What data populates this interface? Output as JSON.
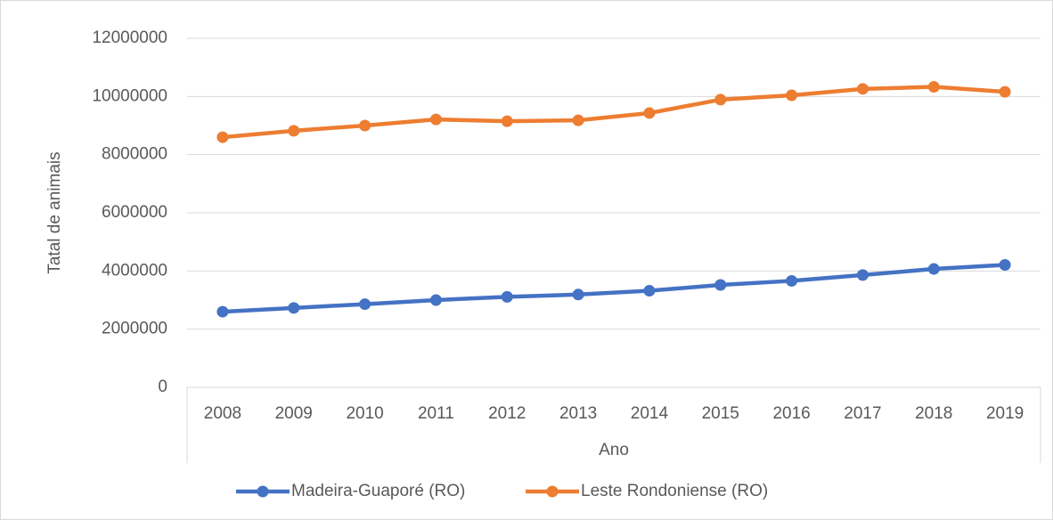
{
  "chart_data": {
    "type": "line",
    "y_label": "Tatal de animais",
    "x_label": "Ano",
    "categories": [
      "2008",
      "2009",
      "2010",
      "2011",
      "2012",
      "2013",
      "2014",
      "2015",
      "2016",
      "2017",
      "2018",
      "2019"
    ],
    "series": [
      {
        "name": "Madeira-Guaporé (RO)",
        "color": "#4472c4",
        "values": [
          2600000,
          2730000,
          2860000,
          3000000,
          3110000,
          3190000,
          3320000,
          3520000,
          3660000,
          3860000,
          4070000,
          4210000
        ]
      },
      {
        "name": "Leste Rondoniense (RO)",
        "color": "#ed7d31",
        "values": [
          8600000,
          8820000,
          9000000,
          9210000,
          9150000,
          9180000,
          9430000,
          9890000,
          10040000,
          10260000,
          10330000,
          10160000
        ]
      }
    ],
    "ylim": [
      0,
      12000000
    ],
    "yticks": [
      0,
      2000000,
      4000000,
      6000000,
      8000000,
      10000000,
      12000000
    ],
    "grid": true,
    "legend": "bottom"
  }
}
